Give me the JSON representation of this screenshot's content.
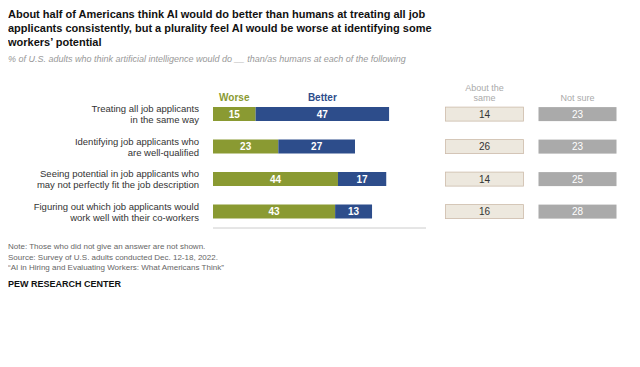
{
  "chart_data": {
    "type": "bar",
    "orientation": "horizontal",
    "stacked": true,
    "data_labels": true,
    "tick_labels": "y",
    "grid": false,
    "title": "About half of Americans think AI would do better than humans at treating all job\napplicants consistently, but a plurality feel AI would be worse at identifying some\nworkers’ potential",
    "subtitle": "% of U.S. adults who think artificial intelligence would do __ than/as humans at each of the following",
    "categories": [
      "Treating all job applicants\nin the same way",
      "Identifying job applicants who\nare well-qualified",
      "Seeing potential in job applicants who\nmay not perfectly fit the job description",
      "Figuring out which job applicants would\nwork well with their co-workers"
    ],
    "series": [
      {
        "name": "Worse",
        "color": "#8a9a32",
        "values": [
          15,
          23,
          44,
          43
        ]
      },
      {
        "name": "Better",
        "color": "#2d4d8b",
        "values": [
          47,
          27,
          17,
          13
        ]
      },
      {
        "name": "About the\nsame",
        "color": "#ede8de",
        "type": "box",
        "values": [
          14,
          26,
          14,
          16
        ]
      },
      {
        "name": "Not sure",
        "color": "#aaaaaa",
        "type": "box",
        "values": [
          23,
          23,
          25,
          28
        ]
      }
    ],
    "xlim": [
      0,
      75
    ],
    "note": "Note: Those who did not give an answer are not shown.\nSource: Survey of U.S. adults conducted Dec. 12-18, 2022.\n“AI in Hiring and Evaluating Workers: What Americans Think”",
    "footer": "PEW RESEARCH CENTER"
  }
}
